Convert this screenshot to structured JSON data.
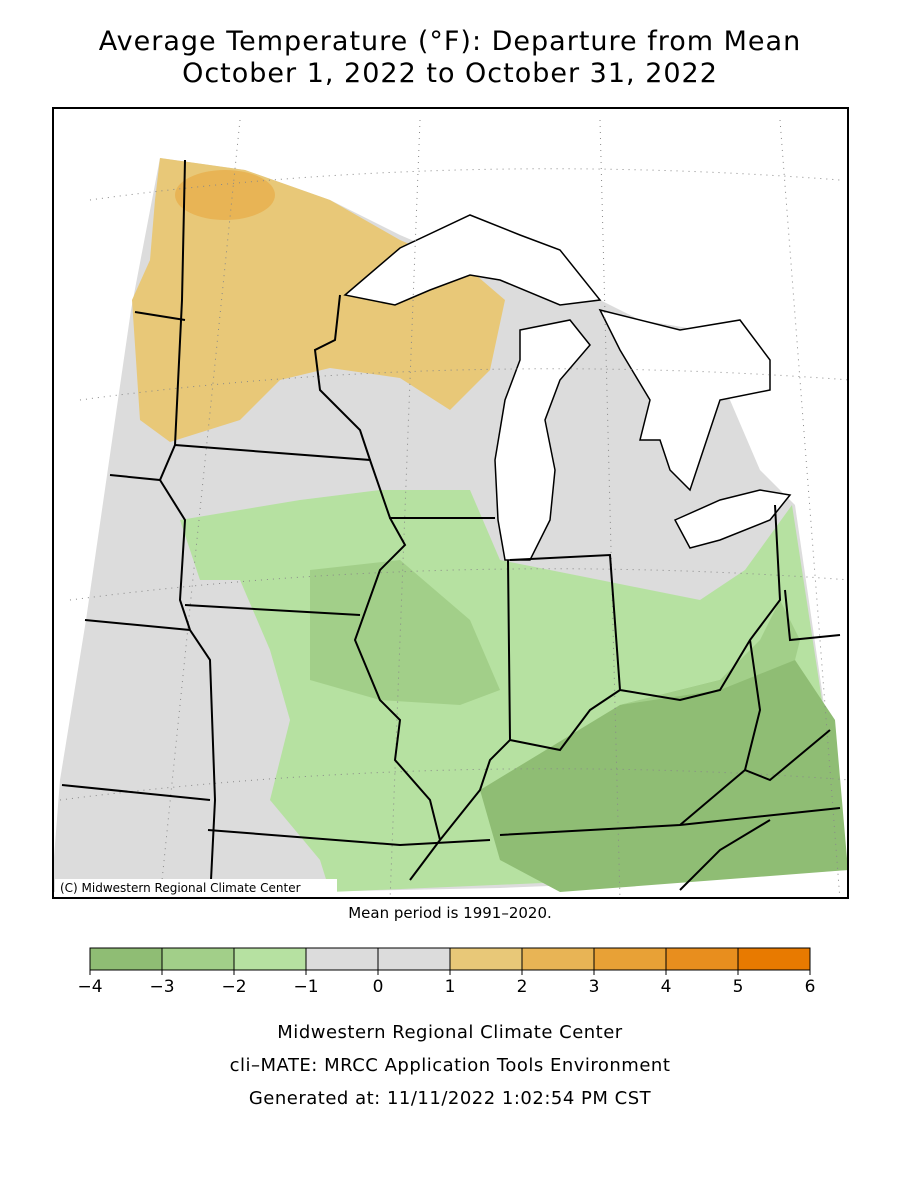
{
  "title": [
    "Average Temperature (°F): Departure from Mean",
    "October 1, 2022 to October 31, 2022"
  ],
  "copyright": "(C) Midwestern Regional Climate Center",
  "note": "Mean period is 1991–2020.",
  "legend": {
    "bins": [
      {
        "value": -4,
        "label": "−4"
      },
      {
        "value": -3,
        "label": "−3"
      },
      {
        "value": -2,
        "label": "−2"
      },
      {
        "value": -1,
        "label": "−1"
      },
      0,
      1,
      2,
      3,
      4,
      5,
      6
    ],
    "colors": [
      "#8fbd74",
      "#a2cf89",
      "#b6e1a1",
      "#dcdcdc",
      "#dcdcdc",
      "#e8c878",
      "#e8b455",
      "#e8a136",
      "#e88e1e",
      "#e87a00"
    ]
  },
  "footer": [
    "Midwestern Regional Climate Center",
    "cli–MATE: MRCC Application Tools Environment",
    "Generated at: 11/11/2022 1:02:54 PM CST"
  ]
}
